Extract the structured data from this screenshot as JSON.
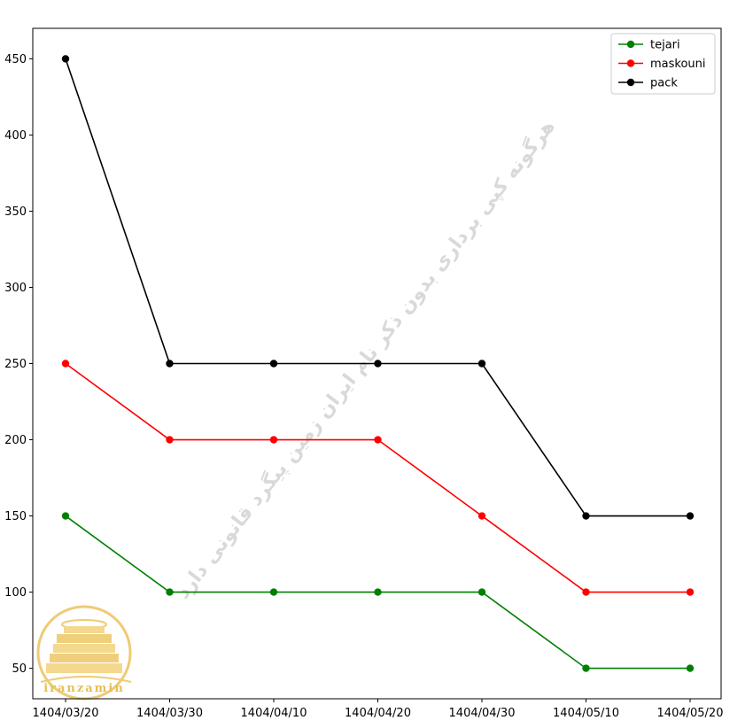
{
  "chart_data": {
    "type": "line",
    "title": "",
    "xlabel": "",
    "ylabel": "",
    "categories": [
      "1404/03/20",
      "1404/03/30",
      "1404/04/10",
      "1404/04/20",
      "1404/04/30",
      "1404/05/10",
      "1404/05/20"
    ],
    "ylim": [
      30,
      470
    ],
    "yticks": [
      50,
      100,
      150,
      200,
      250,
      300,
      350,
      400,
      450
    ],
    "grid": false,
    "legend_position": "top-right",
    "series": [
      {
        "name": "tejari",
        "color": "#008000",
        "values": [
          150,
          100,
          100,
          100,
          100,
          50,
          50
        ]
      },
      {
        "name": "maskouni",
        "color": "#ff0000",
        "values": [
          250,
          200,
          200,
          200,
          150,
          100,
          100
        ]
      },
      {
        "name": "pack",
        "color": "#000000",
        "values": [
          450,
          250,
          250,
          250,
          250,
          150,
          150
        ]
      }
    ]
  },
  "watermark": {
    "text": "هرگونه کپی برداری بدون ذکر نام ایران زمین پیگرد قانونی دارد",
    "color": "#d9d9d9"
  },
  "logo": {
    "text": "iranzamin",
    "color": "#e7bf55"
  }
}
